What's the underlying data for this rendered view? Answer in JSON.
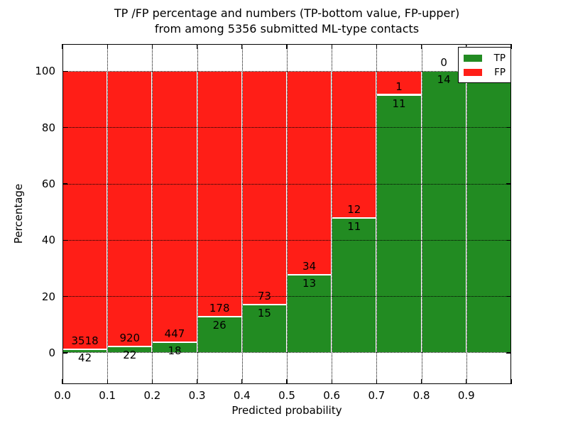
{
  "figure": {
    "title_line1": "TP /FP percentage and numbers (TP-bottom value, FP-upper)",
    "title_line2": "from among 5356 submitted ML-type contacts"
  },
  "chart_data": {
    "type": "bar",
    "stacked": true,
    "orientation": "vertical",
    "title": "TP /FP percentage and numbers (TP-bottom value, FP-upper)\nfrom among 5356 submitted ML-type contacts",
    "xlabel": "Predicted probability",
    "ylabel": "Percentage",
    "total_contacts": 5356,
    "note": "Each bar stacked to 100%; TP count printed below the TP/FP boundary, FP count above it",
    "bin_width": 0.1,
    "bin_starts": [
      0.0,
      0.1,
      0.2,
      0.3,
      0.4,
      0.5,
      0.6,
      0.7,
      0.8,
      0.9
    ],
    "series": [
      {
        "name": "TP",
        "color": "#228b22",
        "counts": [
          42,
          22,
          18,
          26,
          15,
          13,
          11,
          11,
          14,
          1
        ]
      },
      {
        "name": "FP",
        "color": "#ff1e17",
        "counts": [
          3518,
          920,
          447,
          178,
          73,
          34,
          12,
          1,
          0,
          0
        ]
      }
    ],
    "x_tick_values": [
      0.0,
      0.1,
      0.2,
      0.3,
      0.4,
      0.5,
      0.6,
      0.7,
      0.8,
      0.9
    ],
    "x_tick_labels": [
      "0.0",
      "0.1",
      "0.2",
      "0.3",
      "0.4",
      "0.5",
      "0.6",
      "0.7",
      "0.8",
      "0.9"
    ],
    "y_tick_values": [
      0,
      20,
      40,
      60,
      80,
      100
    ],
    "y_tick_labels": [
      "0",
      "20",
      "40",
      "60",
      "80",
      "100"
    ],
    "xlim": [
      0,
      1
    ],
    "ylim": [
      -11.1,
      109.7
    ],
    "grid": true,
    "grid_style": "dotted",
    "legend": {
      "position": "upper right",
      "items": [
        {
          "label": "TP",
          "color": "#228b22"
        },
        {
          "label": "FP",
          "color": "#ff1e17"
        }
      ]
    }
  }
}
